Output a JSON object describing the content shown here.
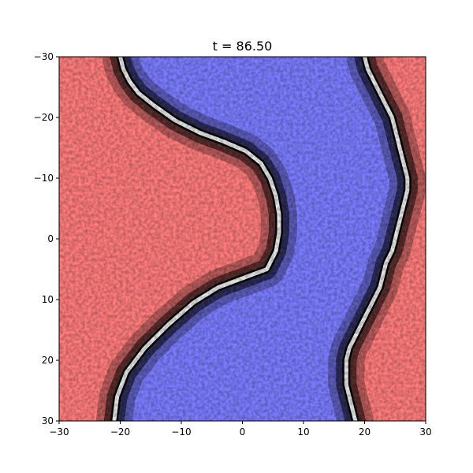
{
  "chart_data": {
    "type": "heatmap",
    "title": "t = 86.50",
    "xlabel": "",
    "ylabel": "",
    "xlim": [
      -30,
      30
    ],
    "ylim": [
      30,
      -30
    ],
    "y_inverted": true,
    "grid": false,
    "legend": "none",
    "x_ticks": [
      -30,
      -20,
      -10,
      0,
      10,
      20,
      30
    ],
    "y_ticks": [
      -30,
      -20,
      -10,
      0,
      10,
      20,
      30
    ],
    "x_tick_labels": [
      "−30",
      "−20",
      "−10",
      "0",
      "10",
      "20",
      "30"
    ],
    "y_tick_labels": [
      "−30",
      "−20",
      "−10",
      "0",
      "10",
      "20",
      "30"
    ],
    "colors": {
      "positive_phase": "#ff7a7a",
      "negative_phase": "#7a7aff",
      "boundary_core": "#ffffff",
      "boundary_edge": "#000000"
    },
    "domain_walls": [
      {
        "name": "",
        "points": [
          [
            -20.0,
            -30
          ],
          [
            -19.5,
            -28
          ],
          [
            -18.5,
            -26
          ],
          [
            -17.0,
            -24
          ],
          [
            -14.5,
            -22
          ],
          [
            -11.0,
            -19.5
          ],
          [
            -7.0,
            -17.5
          ],
          [
            -3.0,
            -16.0
          ],
          [
            0.5,
            -14.5
          ],
          [
            3.0,
            -12.5
          ],
          [
            4.5,
            -10.0
          ],
          [
            5.5,
            -7.0
          ],
          [
            6.0,
            -4.0
          ],
          [
            6.0,
            -1.0
          ],
          [
            5.5,
            2.0
          ],
          [
            4.0,
            5.0
          ],
          [
            0.0,
            6.5
          ],
          [
            -4.0,
            8.0
          ],
          [
            -8.0,
            10.5
          ],
          [
            -12.0,
            14.0
          ],
          [
            -16.0,
            18.0
          ],
          [
            -19.0,
            22.0
          ],
          [
            -20.5,
            26.0
          ],
          [
            -21.0,
            30.0
          ]
        ]
      },
      {
        "name": "",
        "points": [
          [
            20.0,
            -30
          ],
          [
            20.5,
            -28
          ],
          [
            21.5,
            -26
          ],
          [
            22.5,
            -24
          ],
          [
            23.5,
            -22
          ],
          [
            24.5,
            -20
          ],
          [
            25.0,
            -18
          ],
          [
            25.5,
            -16
          ],
          [
            26.0,
            -14
          ],
          [
            26.5,
            -12
          ],
          [
            27.0,
            -10
          ],
          [
            27.0,
            -8
          ],
          [
            26.5,
            -6
          ],
          [
            26.0,
            -4
          ],
          [
            25.5,
            -2
          ],
          [
            25.0,
            0
          ],
          [
            24.5,
            2
          ],
          [
            23.5,
            4
          ],
          [
            23.0,
            6
          ],
          [
            22.5,
            8
          ],
          [
            21.5,
            10
          ],
          [
            20.5,
            12
          ],
          [
            19.5,
            14
          ],
          [
            18.5,
            16
          ],
          [
            17.5,
            18
          ],
          [
            17.0,
            20
          ],
          [
            17.0,
            22
          ],
          [
            17.0,
            24
          ],
          [
            17.5,
            26
          ],
          [
            18.0,
            28
          ],
          [
            18.5,
            30
          ]
        ]
      }
    ]
  }
}
